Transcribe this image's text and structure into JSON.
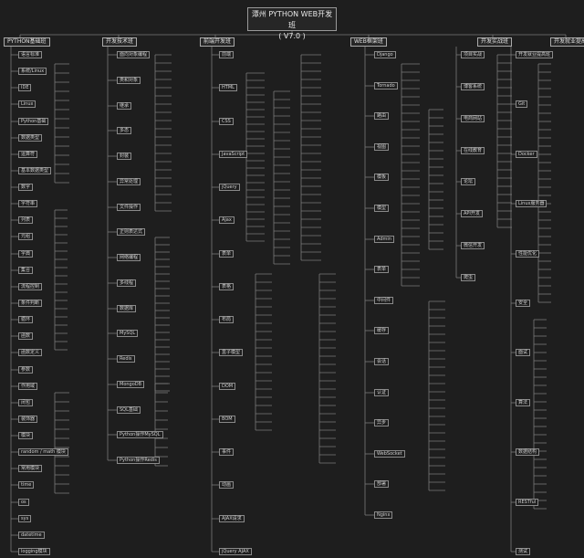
{
  "title": {
    "line1": "潭州 PYTHON WEB开发班",
    "line2": "( V7.0 )"
  },
  "branches": [
    "PYTHON基础班",
    "开发技术班",
    "前端开发班",
    "WEB框架班",
    "开发实战班",
    "开发就业提高班"
  ],
  "col1_nodes": [
    "语言标准",
    "系统/Linux",
    "IDE",
    "Linux",
    "Python基础",
    "数据类型",
    "运算符",
    "基本数据类型",
    "数字",
    "字符串",
    "列表",
    "元组",
    "字典",
    "集合",
    "流程控制",
    "条件判断",
    "循环",
    "函数",
    "函数定义",
    "参数",
    "作用域",
    "闭包",
    "装饰器",
    "模块",
    "random / math 模块",
    "常用模块",
    "time",
    "os",
    "sys",
    "datetime",
    "logging模块"
  ],
  "col2_nodes": [
    "面向对象编程",
    "类和对象",
    "继承",
    "多态",
    "封装",
    "异常处理",
    "文件操作",
    "正则表达式",
    "网络编程",
    "多线程",
    "数据库",
    "MySQL",
    "Redis",
    "MongoDB",
    "SQL基础",
    "Python操作MySQL",
    "Python操作Redis"
  ],
  "col3_nodes": [
    "前端",
    "HTML",
    "CSS",
    "JavaScript",
    "jQuery",
    "Ajax",
    "表单",
    "表格",
    "布局",
    "盒子模型",
    "DOM",
    "BOM",
    "事件",
    "动画",
    "AJAX请求",
    "jQuery AJAX"
  ],
  "col4_nodes": [
    "Django",
    "Tornado",
    "路由",
    "视图",
    "模板",
    "模型",
    "Admin",
    "表单",
    "中间件",
    "缓存",
    "会话",
    "认证",
    "异步",
    "WebSocket",
    "部署",
    "Nginx"
  ],
  "col5_nodes": [
    "项目实战",
    "博客系统",
    "电商网站",
    "在线教育",
    "论坛",
    "API开发",
    "微信开发",
    "爬虫"
  ],
  "col6_nodes": [
    "开发就业提高班",
    "Git",
    "Docker",
    "Linux服务器",
    "性能优化",
    "安全",
    "面试",
    "算法",
    "数据结构",
    "RESTful",
    "测试"
  ]
}
